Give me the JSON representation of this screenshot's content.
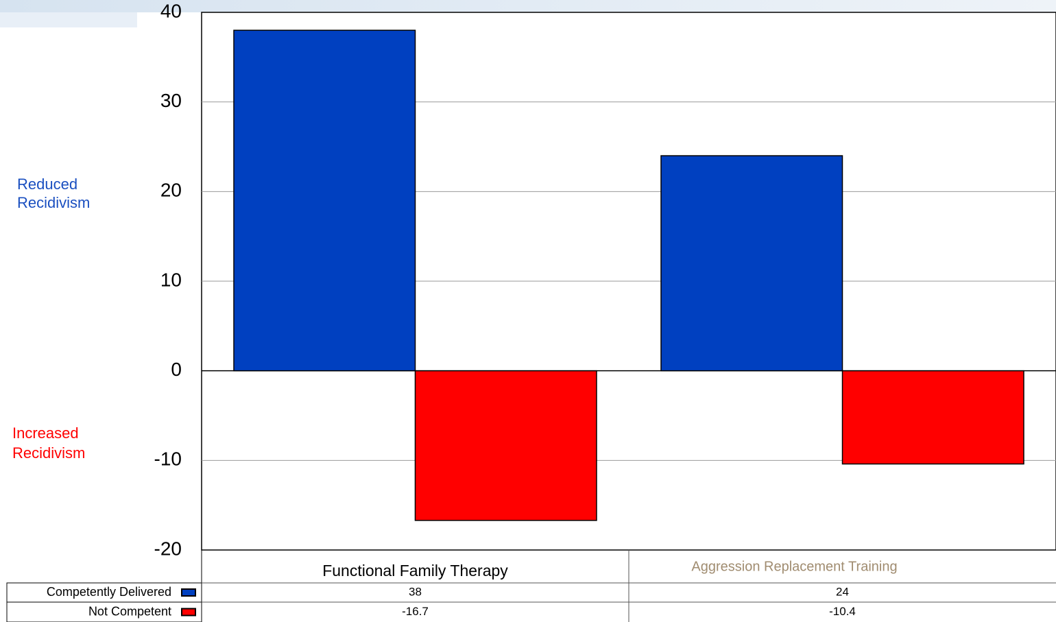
{
  "chart_data": {
    "type": "bar",
    "categories": [
      "Functional Family Therapy",
      "Aggression Replacement Training"
    ],
    "series": [
      {
        "name": "Competently Delivered",
        "color": "#0040c0",
        "values": [
          38,
          24
        ]
      },
      {
        "name": "Not Competent",
        "color": "#ff0000",
        "values": [
          -16.7,
          -10.4
        ]
      }
    ],
    "annotations": [
      {
        "text": "Reduced Recidivism",
        "color": "#1a4fc0"
      },
      {
        "text": "Increased Recidivism",
        "color": "#ff0000"
      }
    ],
    "ylim": [
      -20,
      40
    ],
    "yticks": [
      -20,
      -10,
      0,
      10,
      20,
      30,
      40
    ],
    "grid": true
  }
}
